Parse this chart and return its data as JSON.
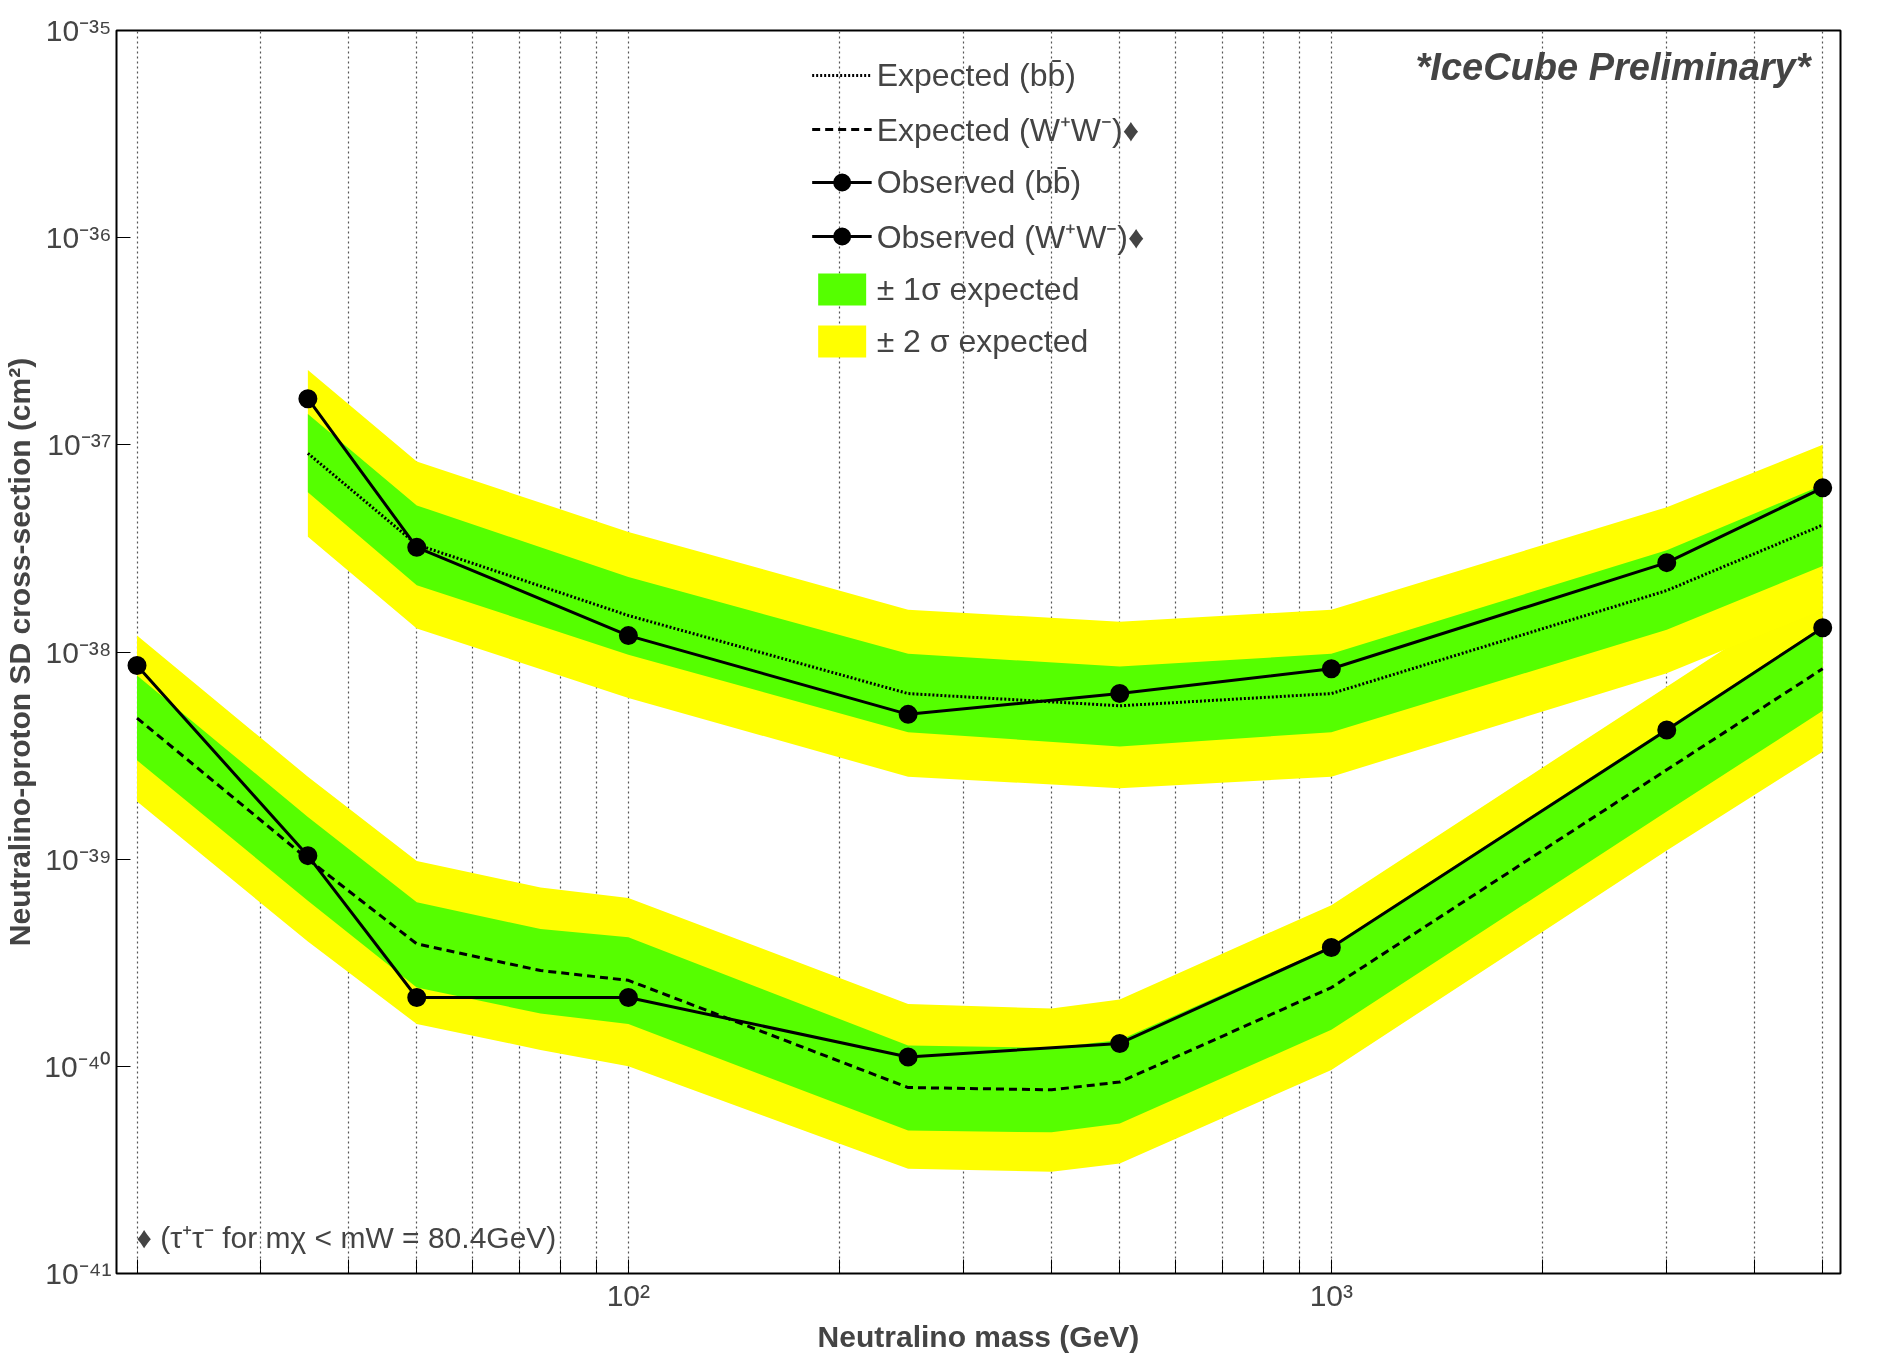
{
  "chart_data": {
    "type": "line",
    "xlabel": "Neutralino mass (GeV)",
    "ylabel": "Neutralino-proton SD cross-section (cm²)",
    "log": "xy",
    "grid": "x",
    "legend": "top",
    "xlim": [
      18.7,
      5300
    ],
    "ylim": [
      1e-41,
      1e-35
    ],
    "xticks": [
      {
        "value": 20,
        "label": null
      },
      {
        "value": 30,
        "label": null
      },
      {
        "value": 40,
        "label": null
      },
      {
        "value": 50,
        "label": null
      },
      {
        "value": 60,
        "label": null
      },
      {
        "value": 70,
        "label": null
      },
      {
        "value": 80,
        "label": null
      },
      {
        "value": 90,
        "label": null
      },
      {
        "value": 100,
        "label": "10²"
      },
      {
        "value": 200,
        "label": null
      },
      {
        "value": 300,
        "label": null
      },
      {
        "value": 400,
        "label": null
      },
      {
        "value": 500,
        "label": null
      },
      {
        "value": 600,
        "label": null
      },
      {
        "value": 700,
        "label": null
      },
      {
        "value": 800,
        "label": null
      },
      {
        "value": 900,
        "label": null
      },
      {
        "value": 1000,
        "label": "10³"
      },
      {
        "value": 2000,
        "label": null
      },
      {
        "value": 3000,
        "label": null
      },
      {
        "value": 4000,
        "label": null
      },
      {
        "value": 5000,
        "label": null
      }
    ],
    "yticks": [
      {
        "value": 1e-41,
        "label": "10⁻⁴¹"
      },
      {
        "value": 1e-40,
        "label": "10⁻⁴⁰"
      },
      {
        "value": 1e-39,
        "label": "10⁻³⁹"
      },
      {
        "value": 1e-38,
        "label": "10⁻³⁸"
      },
      {
        "value": 1e-37,
        "label": "10⁻³⁷"
      },
      {
        "value": 1e-36,
        "label": "10⁻³⁶"
      },
      {
        "value": 1e-35,
        "label": "10⁻³⁵"
      }
    ],
    "annotations": [
      "*IceCube Preliminary*",
      "♦ (τ⁺τ⁻ for mχ < mW = 80.4GeV)"
    ],
    "series": [
      {
        "name": "Expected (bb̄)",
        "color": "#000000",
        "line_style": "dotted",
        "marker": "none",
        "x": [
          35,
          50,
          100,
          250,
          500,
          1000,
          3000,
          5000
        ],
        "values": [
          9.1e-38,
          3.3e-38,
          1.5e-38,
          6.3e-39,
          5.5e-39,
          6.3e-39,
          1.98e-38,
          4.1e-38
        ]
      },
      {
        "name": "Expected (W⁺W⁻)♦",
        "color": "#000000",
        "line_style": "dashed",
        "marker": "none",
        "x": [
          20,
          35,
          50,
          75,
          100,
          250,
          400,
          500,
          1000,
          3000,
          5000
        ],
        "values": [
          4.8e-39,
          1e-39,
          3.9e-40,
          2.9e-40,
          2.6e-40,
          7.9e-41,
          7.7e-41,
          8.4e-41,
          2.4e-40,
          2.7e-39,
          8.3e-39
        ]
      },
      {
        "name": "Observed (bb̄)",
        "color": "#000000",
        "line_style": "solid",
        "marker": "circle",
        "x": [
          35,
          50,
          100,
          250,
          500,
          1000,
          3000,
          5000
        ],
        "values": [
          1.67e-37,
          3.2e-38,
          1.2e-38,
          5e-39,
          6.3e-39,
          8.3e-39,
          2.7e-38,
          6.2e-38
        ]
      },
      {
        "name": "Observed (W⁺W⁻)♦",
        "color": "#000000",
        "line_style": "solid",
        "marker": "circle",
        "x": [
          20,
          35,
          50,
          100,
          250,
          500,
          1000,
          3000,
          5000
        ],
        "values": [
          8.6e-39,
          1.04e-39,
          2.15e-40,
          2.15e-40,
          1.11e-40,
          1.29e-40,
          3.75e-40,
          4.2e-39,
          1.31e-38
        ]
      },
      {
        "name": "± 1σ expected",
        "color": "#55ff00",
        "marker": "none",
        "x": [
          35,
          50,
          100,
          250,
          500,
          1000,
          3000,
          5000
        ],
        "values": [
          null,
          null,
          null,
          null,
          null,
          null,
          null,
          null
        ],
        "lower": [
          5.9e-38,
          2.1e-38,
          9.7e-39,
          4.1e-39,
          3.5e-39,
          4.1e-39,
          1.28e-38,
          2.6e-38
        ],
        "upper": [
          1.41e-37,
          5.1e-38,
          2.3e-38,
          9.8e-39,
          8.5e-39,
          9.8e-39,
          3.1e-38,
          6.4e-38
        ]
      },
      {
        "name": "± 2 σ expected",
        "color": "#ffff00",
        "marker": "none",
        "x": [
          35,
          50,
          100,
          250,
          500,
          1000,
          3000,
          5000
        ],
        "values": [
          null,
          null,
          null,
          null,
          null,
          null,
          null,
          null
        ],
        "lower": [
          3.6e-38,
          1.3e-38,
          6e-39,
          2.5e-39,
          2.2e-39,
          2.5e-39,
          7.9e-39,
          1.6e-38
        ],
        "upper": [
          2.3e-37,
          8.3e-38,
          3.8e-38,
          1.6e-38,
          1.4e-38,
          1.6e-38,
          5e-38,
          1e-37
        ]
      },
      {
        "color": "#56fe00",
        "marker": "none",
        "x": [
          20,
          35,
          50,
          75,
          100,
          250,
          400,
          500,
          1000,
          3000,
          5000
        ],
        "values": [
          null,
          null,
          null,
          null,
          null,
          null,
          null,
          null,
          null,
          null,
          null
        ],
        "lower": [
          3e-39,
          6.3e-40,
          2.4e-40,
          1.8e-40,
          1.6e-40,
          4.9e-41,
          4.8e-41,
          5.3e-41,
          1.5e-40,
          1.7e-39,
          5.2e-39
        ],
        "upper": [
          7.7e-39,
          1.6e-39,
          6.2e-40,
          4.6e-40,
          4.2e-40,
          1.26e-40,
          1.23e-40,
          1.34e-40,
          3.8e-40,
          4.3e-39,
          1.33e-38
        ]
      },
      {
        "color": "#fefe01",
        "marker": "none",
        "x": [
          20,
          35,
          50,
          75,
          100,
          250,
          400,
          500,
          1000,
          3000,
          5000
        ],
        "values": [
          null,
          null,
          null,
          null,
          null,
          null,
          null,
          null,
          null,
          null,
          null
        ],
        "lower": [
          1.9e-39,
          4e-40,
          1.6e-40,
          1.2e-40,
          1e-40,
          3.2e-41,
          3.1e-41,
          3.4e-41,
          9.6e-41,
          1.1e-39,
          3.3e-39
        ],
        "upper": [
          1.2e-38,
          2.5e-39,
          9.8e-40,
          7.3e-40,
          6.5e-40,
          2e-40,
          1.9e-40,
          2.1e-40,
          6e-40,
          6.8e-39,
          2.1e-38
        ]
      }
    ]
  }
}
